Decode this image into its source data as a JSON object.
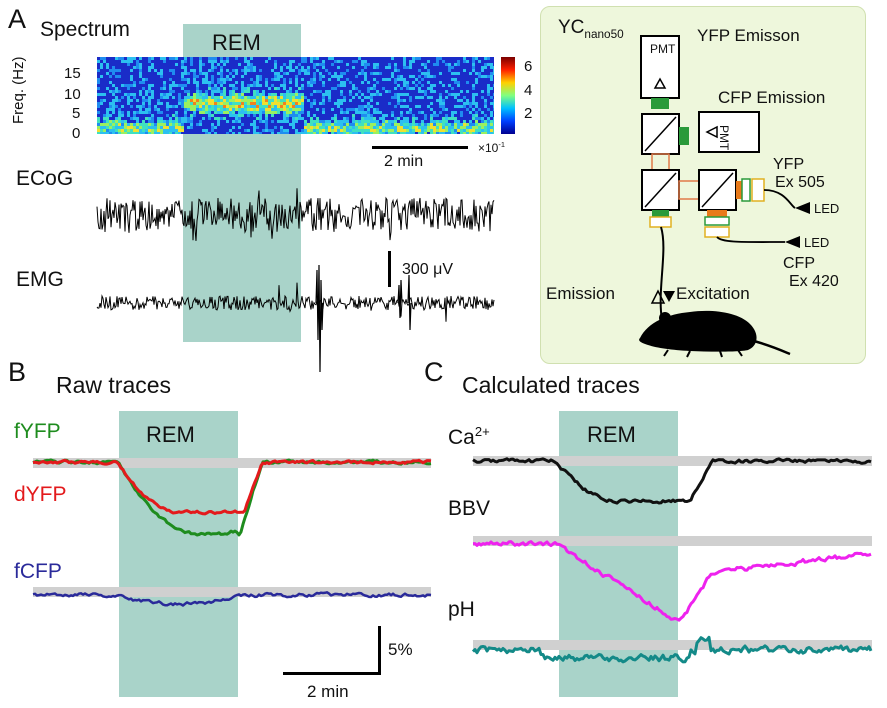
{
  "colors": {
    "rem_band": "#a9d3c9",
    "schematic_bg": "#eef7dc",
    "fYFP": "#1e8c1e",
    "dYFP": "#e31a1c",
    "fCFP": "#2a2a9a",
    "ca": "#111111",
    "bbv": "#ee22ee",
    "ph": "#138a88",
    "baseline": "#d0d0d0"
  },
  "panel_a": {
    "letter": "A",
    "spectrum_label": "Spectrum",
    "rem_label": "REM",
    "freq_axis_label": "Freq. (Hz)",
    "freq_ticks": [
      "0",
      "5",
      "10",
      "15"
    ],
    "colorbar_ticks": [
      "6",
      "4",
      "2"
    ],
    "colorbar_multiplier": "×10",
    "colorbar_multiplier_exp": "-1",
    "time_scale": "2 min",
    "ecog_label": "ECoG",
    "emg_label": "EMG",
    "voltage_scale": "300 μV"
  },
  "schematic": {
    "yc_main": "YC",
    "yc_sub": "nano50",
    "yfp_emission": "YFP Emisson",
    "cfp_emission": "CFP Emission",
    "pmt1": "PMT",
    "pmt2": "PMT",
    "yfp_ex_1": "YFP",
    "yfp_ex_2": "Ex 505",
    "cfp_ex_1": "CFP",
    "cfp_ex_2": "Ex 420",
    "led1": "LED",
    "led2": "LED",
    "emission": "Emission",
    "excitation": "Excitation"
  },
  "panel_b": {
    "letter": "B",
    "title": "Raw traces",
    "rem_label": "REM",
    "trace_labels": [
      "fYFP",
      "dYFP",
      "fCFP"
    ],
    "amp_scale": "5%",
    "time_scale": "2 min"
  },
  "panel_c": {
    "letter": "C",
    "title": "Calculated traces",
    "rem_label": "REM",
    "ca_main": "Ca",
    "ca_sup": "2+",
    "bbv_label": "BBV",
    "ph_label": "pH"
  }
}
